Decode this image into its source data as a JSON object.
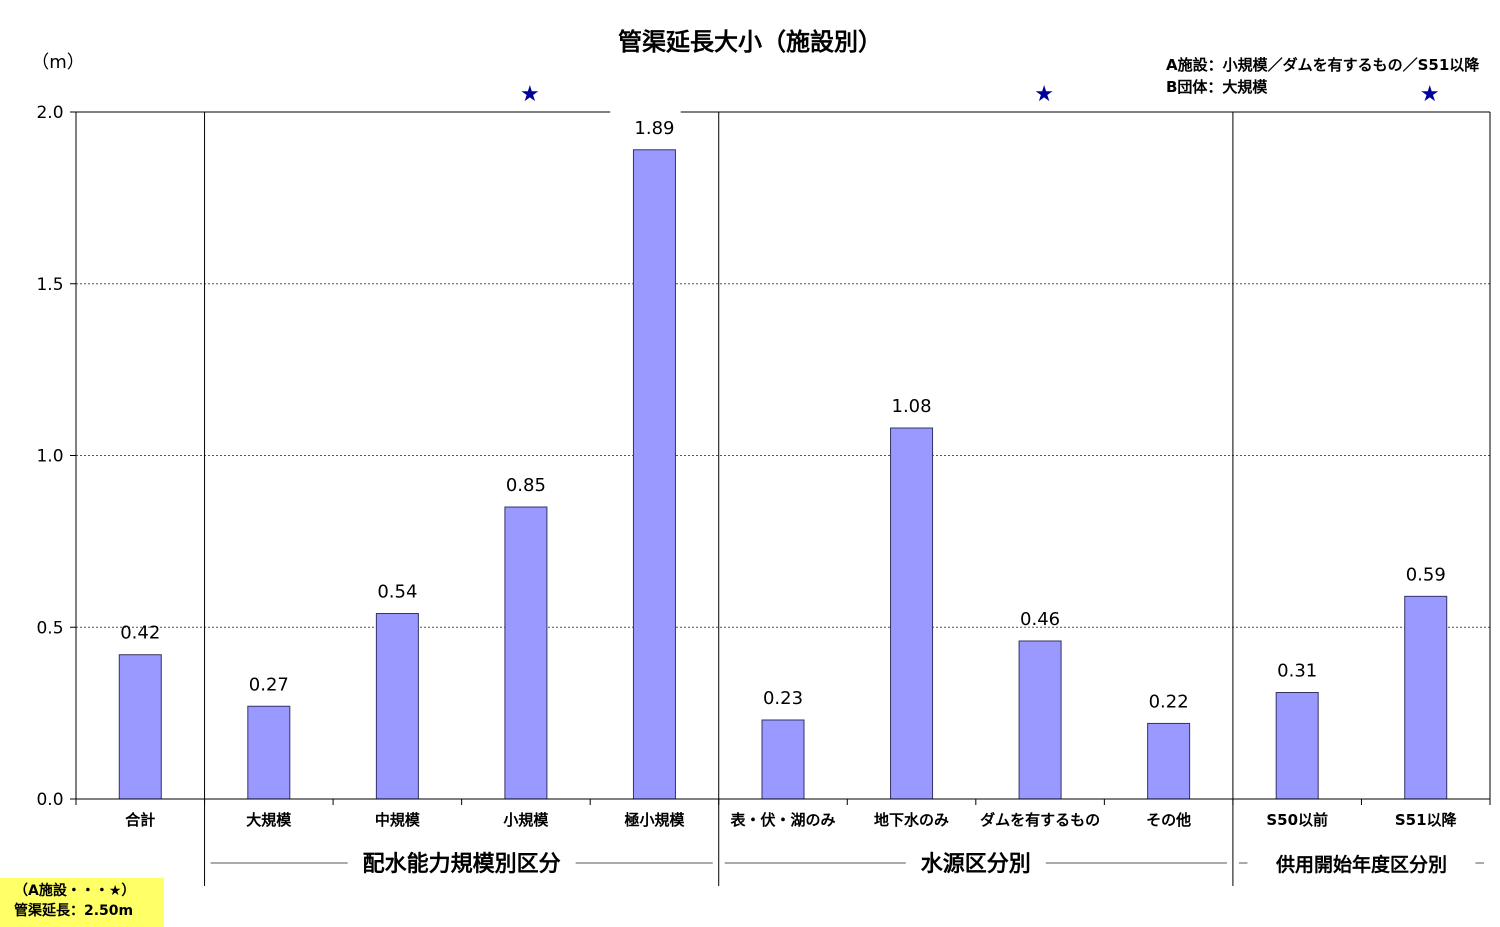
{
  "chart_data": {
    "type": "bar",
    "title": "管渠延長大小（施設別）",
    "ylabel": "（m）",
    "ylim": [
      0,
      2.0
    ],
    "yticks": [
      "0.0",
      "0.5",
      "1.0",
      "1.5",
      "2.0"
    ],
    "grid": true,
    "categories": [
      "合計",
      "大規模",
      "中規模",
      "小規模",
      "極小規模",
      "表・伏・湖のみ",
      "地下水のみ",
      "ダムを有するもの",
      "その他",
      "S50以前",
      "S51以降"
    ],
    "values": [
      0.42,
      0.27,
      0.54,
      0.85,
      1.89,
      0.23,
      1.08,
      0.46,
      0.22,
      0.31,
      0.59
    ],
    "value_labels": [
      "0.42",
      "0.27",
      "0.54",
      "0.85",
      "1.89",
      "0.23",
      "1.08",
      "0.46",
      "0.22",
      "0.31",
      "0.59"
    ],
    "bar_color": "#9999ff",
    "marker_color": "#000099",
    "star_marker": "★",
    "star_categories": [
      "小規模",
      "ダムを有するもの",
      "S51以降"
    ],
    "groups": [
      {
        "label": "配水能力規模別区分",
        "categories": [
          "大規模",
          "中規模",
          "小規模",
          "極小規模"
        ]
      },
      {
        "label": "水源区分別",
        "categories": [
          "表・伏・湖のみ",
          "地下水のみ",
          "ダムを有するもの",
          "その他"
        ]
      },
      {
        "label": "供用開始年度区分別",
        "categories": [
          "S50以前",
          "S51以降"
        ]
      }
    ],
    "legend_lines": [
      "A施設：小規模／ダムを有するもの／S51以降",
      "B団体：大規模"
    ],
    "note_lines": [
      "（A施設・・・★）",
      "管渠延長：2.50m"
    ]
  }
}
